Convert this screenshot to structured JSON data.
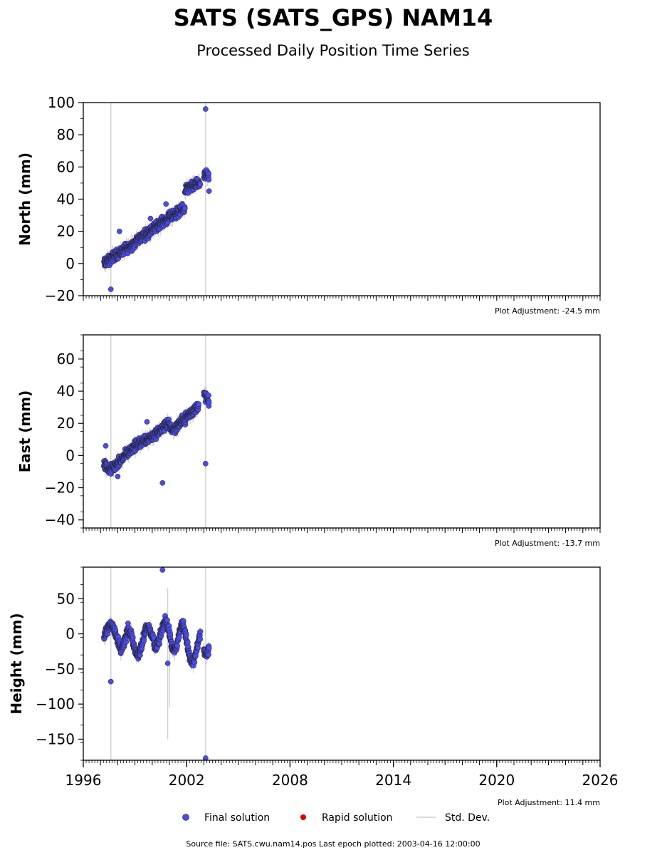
{
  "title": "SATS (SATS_GPS) NAM14",
  "subtitle": "Processed Daily Position Time Series",
  "source_line": "Source file: SATS.cwu.nam14.pos  Last epoch plotted: 2003-04-16 12:00:00",
  "legend": {
    "final": "Final solution",
    "rapid": "Rapid solution",
    "std": "Std. Dev."
  },
  "colors": {
    "final": "#4b4bef",
    "rapid": "#dd0000",
    "std": "#cfcfcf",
    "marker_edge": "#222222"
  },
  "chart_data": [
    {
      "type": "scatter",
      "ylabel": "North (mm)",
      "adjustment_label": "Plot Adjustment: -24.5 mm",
      "xlim": [
        1996,
        2026
      ],
      "ylim": [
        -20,
        100
      ],
      "yticks": [
        -20,
        0,
        20,
        40,
        60,
        80,
        100
      ],
      "ytick_labels": [
        "−20",
        "0",
        "20",
        "40",
        "60",
        "80",
        "100"
      ],
      "segments": [
        {
          "x": [
            1997.2,
            1997.5,
            1997.8,
            1998.0,
            1998.3,
            1998.6,
            1999.0,
            1999.3,
            1999.6,
            2000.0,
            2000.3,
            2000.6,
            2000.9,
            2001.2,
            2001.5,
            2001.9
          ],
          "y": [
            0,
            2,
            5,
            6,
            8,
            10,
            13,
            16,
            18,
            21,
            24,
            26,
            28,
            30,
            32,
            34
          ]
        },
        {
          "x": [
            2001.9,
            2002.2,
            2002.5,
            2002.8
          ],
          "y": [
            46,
            47,
            49,
            50
          ]
        },
        {
          "x": [
            2003.0,
            2003.15,
            2003.3
          ],
          "y": [
            54,
            55,
            54
          ]
        }
      ],
      "outliers": [
        {
          "x": 1997.6,
          "y": -16
        },
        {
          "x": 1998.1,
          "y": 20
        },
        {
          "x": 2003.1,
          "y": 96
        },
        {
          "x": 2003.3,
          "y": 45
        },
        {
          "x": 1999.9,
          "y": 28
        },
        {
          "x": 2000.8,
          "y": 37
        }
      ],
      "std_dev_lines": [
        {
          "x": 1997.6,
          "y0": -20,
          "y1": 100
        },
        {
          "x": 2003.1,
          "y0": -20,
          "y1": 100
        }
      ]
    },
    {
      "type": "scatter",
      "ylabel": "East (mm)",
      "adjustment_label": "Plot Adjustment: -13.7 mm",
      "xlim": [
        1996,
        2026
      ],
      "ylim": [
        -45,
        75
      ],
      "yticks": [
        -40,
        -20,
        0,
        20,
        40,
        60
      ],
      "ytick_labels": [
        "−40",
        "−20",
        "0",
        "20",
        "40",
        "60"
      ],
      "segments": [
        {
          "x": [
            1997.2,
            1997.5,
            1997.8,
            1998.1,
            1998.4,
            1998.7,
            1999.0,
            1999.3,
            1999.6,
            2000.0,
            2000.3,
            2000.6,
            2000.9,
            2001.2,
            2001.5,
            2001.8,
            2002.1,
            2002.4,
            2002.7
          ],
          "y": [
            -5,
            -9,
            -7,
            -4,
            0,
            3,
            6,
            8,
            10,
            12,
            14,
            17,
            20,
            16,
            19,
            22,
            25,
            28,
            31
          ]
        },
        {
          "x": [
            2003.0,
            2003.15,
            2003.3
          ],
          "y": [
            38,
            36,
            33
          ]
        }
      ],
      "outliers": [
        {
          "x": 1998.0,
          "y": -13
        },
        {
          "x": 2000.6,
          "y": -17
        },
        {
          "x": 2003.1,
          "y": -5
        },
        {
          "x": 1999.7,
          "y": 21
        },
        {
          "x": 1997.3,
          "y": 6
        }
      ],
      "std_dev_lines": [
        {
          "x": 1997.6,
          "y0": -45,
          "y1": 75
        },
        {
          "x": 2003.1,
          "y0": -45,
          "y1": 75
        }
      ]
    },
    {
      "type": "scatter",
      "ylabel": "Height (mm)",
      "adjustment_label": "Plot Adjustment: 11.4 mm",
      "xlim": [
        1996,
        2026
      ],
      "ylim": [
        -180,
        95
      ],
      "yticks": [
        -150,
        -100,
        -50,
        0,
        50
      ],
      "ytick_labels": [
        "−150",
        "−100",
        "−50",
        "0",
        "50"
      ],
      "xticks": [
        1996,
        2002,
        2008,
        2014,
        2020,
        2026
      ],
      "xtick_labels": [
        "1996",
        "2002",
        "2008",
        "2014",
        "2020",
        "2026"
      ],
      "segments": [
        {
          "x": [
            1997.2,
            1997.4,
            1997.6,
            1997.8,
            1998.0,
            1998.2,
            1998.4,
            1998.6,
            1998.8,
            1999.0,
            1999.2,
            1999.4,
            1999.6,
            1999.8,
            2000.0,
            2000.2,
            2000.4,
            2000.6,
            2000.8,
            2001.0,
            2001.2,
            2001.4,
            2001.6,
            2001.8,
            2002.0,
            2002.2,
            2002.4,
            2002.6,
            2002.8
          ],
          "y": [
            -5,
            5,
            15,
            5,
            -10,
            -20,
            -10,
            5,
            0,
            -25,
            -30,
            -15,
            5,
            10,
            -5,
            -20,
            -10,
            10,
            20,
            0,
            -25,
            -20,
            5,
            15,
            -10,
            -35,
            -40,
            -20,
            0
          ]
        },
        {
          "x": [
            2003.0,
            2003.15,
            2003.3
          ],
          "y": [
            -25,
            -30,
            -20
          ]
        }
      ],
      "outliers": [
        {
          "x": 1997.6,
          "y": -68
        },
        {
          "x": 2000.6,
          "y": 91
        },
        {
          "x": 2003.1,
          "y": -177
        },
        {
          "x": 2000.9,
          "y": -42
        },
        {
          "x": 1998.6,
          "y": 15
        }
      ],
      "std_dev_lines": [
        {
          "x": 1997.6,
          "y0": -180,
          "y1": 95
        },
        {
          "x": 2003.1,
          "y0": -180,
          "y1": 95
        },
        {
          "x": 2000.9,
          "y0": -150,
          "y1": 65
        },
        {
          "x": 2001.0,
          "y0": -105,
          "y1": 20
        }
      ]
    }
  ]
}
